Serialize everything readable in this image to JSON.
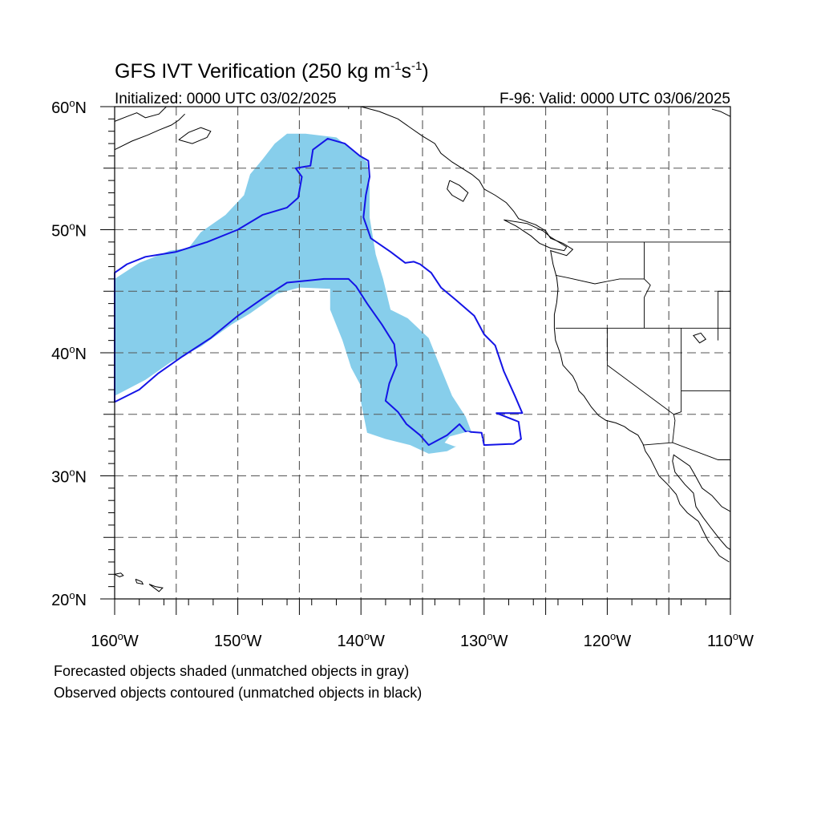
{
  "title": {
    "main": "GFS IVT Verification (250 kg m",
    "sup1": "-1",
    "mid": "s",
    "sup2": "-1",
    "end": ")"
  },
  "initialized": "Initialized: 0000 UTC 03/02/2025",
  "valid": "F-96: Valid: 0000 UTC 03/06/2025",
  "lat_labels": [
    {
      "value": 60,
      "text": "60",
      "unit": "N"
    },
    {
      "value": 50,
      "text": "50",
      "unit": "N"
    },
    {
      "value": 40,
      "text": "40",
      "unit": "N"
    },
    {
      "value": 30,
      "text": "30",
      "unit": "N"
    },
    {
      "value": 20,
      "text": "20",
      "unit": "N"
    }
  ],
  "lon_labels": [
    {
      "value": -160,
      "text": "160",
      "unit": "W"
    },
    {
      "value": -150,
      "text": "150",
      "unit": "W"
    },
    {
      "value": -140,
      "text": "140",
      "unit": "W"
    },
    {
      "value": -130,
      "text": "130",
      "unit": "W"
    },
    {
      "value": -120,
      "text": "120",
      "unit": "W"
    },
    {
      "value": -110,
      "text": "110",
      "unit": "W"
    }
  ],
  "degree_symbol": "o",
  "footnote_1": "Forecasted objects shaded (unmatched objects in gray)",
  "footnote_2": "Observed objects contoured (unmatched objects in black)",
  "map_extent": {
    "lon_min": -160,
    "lon_max": -110,
    "lat_min": 20,
    "lat_max": 60
  },
  "grid_spacing_deg": 5,
  "colors": {
    "forecast_fill": "#87ceeb",
    "observed_contour": "#1414e6",
    "coastline": "#000000",
    "grid": "#555555"
  },
  "forecast_object": [
    [
      -160,
      46
    ],
    [
      -158,
      47.3
    ],
    [
      -155.5,
      48.3
    ],
    [
      -154,
      48.5
    ],
    [
      -153,
      49.8
    ],
    [
      -151,
      51.2
    ],
    [
      -149.5,
      52.8
    ],
    [
      -149,
      54.5
    ],
    [
      -148,
      55.7
    ],
    [
      -147,
      57
    ],
    [
      -146,
      57.8
    ],
    [
      -144.5,
      57.8
    ],
    [
      -142,
      57.5
    ],
    [
      -140.5,
      56.3
    ],
    [
      -139.5,
      55.5
    ],
    [
      -139.3,
      53.5
    ],
    [
      -139.3,
      51
    ],
    [
      -138.8,
      48
    ],
    [
      -138.2,
      46
    ],
    [
      -137.6,
      43.5
    ],
    [
      -136.2,
      42.8
    ],
    [
      -134.5,
      41.2
    ],
    [
      -133.7,
      39.2
    ],
    [
      -132.6,
      36.5
    ],
    [
      -131.5,
      34.8
    ],
    [
      -131,
      33.5
    ],
    [
      -131.7,
      32.7
    ],
    [
      -133,
      32
    ],
    [
      -134.5,
      31.8
    ],
    [
      -136,
      32.5
    ],
    [
      -138,
      33
    ],
    [
      -139.5,
      33.5
    ],
    [
      -140,
      36
    ],
    [
      -140,
      37.3
    ],
    [
      -140.8,
      38.8
    ],
    [
      -141.5,
      41
    ],
    [
      -142.5,
      43.5
    ],
    [
      -142.5,
      45.2
    ],
    [
      -145,
      45.3
    ],
    [
      -146.8,
      44.8
    ],
    [
      -148,
      43.9
    ],
    [
      -149,
      43.2
    ],
    [
      -150.5,
      42.3
    ],
    [
      -153,
      40.5
    ],
    [
      -155.5,
      39.2
    ],
    [
      -157.5,
      37.8
    ],
    [
      -160,
      36.5
    ]
  ],
  "observed_object": [
    [
      -160,
      46.5
    ],
    [
      -159,
      47.2
    ],
    [
      -157.5,
      47.8
    ],
    [
      -155,
      48.2
    ],
    [
      -152.5,
      49
    ],
    [
      -150,
      50
    ],
    [
      -148,
      51.2
    ],
    [
      -146,
      51.8
    ],
    [
      -145.1,
      52.6
    ],
    [
      -144.8,
      54.3
    ],
    [
      -145.3,
      55
    ],
    [
      -144.1,
      55.2
    ],
    [
      -143.9,
      56.5
    ],
    [
      -142.7,
      57.4
    ],
    [
      -141.3,
      57
    ],
    [
      -140.1,
      56
    ],
    [
      -139.4,
      55.6
    ],
    [
      -139.3,
      54.3
    ],
    [
      -139.6,
      52.8
    ],
    [
      -139.8,
      51
    ],
    [
      -139.2,
      49.3
    ],
    [
      -137.6,
      48.2
    ],
    [
      -136.4,
      47.3
    ],
    [
      -135.7,
      47.4
    ],
    [
      -135.2,
      47.2
    ],
    [
      -134.3,
      46.5
    ],
    [
      -133.5,
      45.3
    ],
    [
      -132.3,
      44.3
    ],
    [
      -130.8,
      43
    ],
    [
      -130,
      41.5
    ],
    [
      -129.1,
      40.6
    ],
    [
      -128.4,
      38.5
    ],
    [
      -127.5,
      36.5
    ],
    [
      -126.9,
      35.1
    ],
    [
      -129,
      35.1
    ],
    [
      -127.2,
      34.4
    ],
    [
      -127,
      33
    ],
    [
      -127.6,
      32.6
    ],
    [
      -130,
      32.5
    ],
    [
      -130.2,
      33.5
    ],
    [
      -131.5,
      33.6
    ],
    [
      -132,
      34.2
    ],
    [
      -133,
      33.3
    ],
    [
      -134.5,
      32.5
    ],
    [
      -135.2,
      33.3
    ],
    [
      -136.3,
      34.2
    ],
    [
      -137,
      35.2
    ],
    [
      -138,
      36.1
    ],
    [
      -137.7,
      37.5
    ],
    [
      -137.1,
      39
    ],
    [
      -137.3,
      40.7
    ],
    [
      -138.3,
      42.3
    ],
    [
      -139.5,
      44
    ],
    [
      -140.4,
      45.4
    ],
    [
      -141,
      46
    ],
    [
      -143,
      46
    ],
    [
      -146,
      45.7
    ],
    [
      -148,
      44.4
    ],
    [
      -150,
      43
    ],
    [
      -152.2,
      41.2
    ],
    [
      -154.5,
      39.7
    ],
    [
      -156.5,
      38.3
    ],
    [
      -158,
      37
    ],
    [
      -160,
      36
    ]
  ],
  "observed_inner_gap": [
    [
      -132.8,
      33.2
    ],
    [
      -131.3,
      33.6
    ],
    [
      -130.1,
      33
    ],
    [
      -130.8,
      32.4
    ],
    [
      -132.4,
      32.4
    ],
    [
      -133.2,
      32.7
    ]
  ],
  "coastlines": [
    [
      [
        -160,
        58.8
      ],
      [
        -159,
        59.2
      ],
      [
        -158.2,
        59.5
      ],
      [
        -157.5,
        59.1
      ],
      [
        -156.4,
        59.4
      ],
      [
        -155.8,
        60
      ]
    ],
    [
      [
        -160,
        56.5
      ],
      [
        -158.6,
        57.2
      ],
      [
        -157.3,
        57.7
      ],
      [
        -156.4,
        58.1
      ],
      [
        -155.4,
        58.5
      ],
      [
        -154.8,
        58.9
      ],
      [
        -154.3,
        59.4
      ]
    ],
    [
      [
        -154.8,
        57.3
      ],
      [
        -153.7,
        57
      ],
      [
        -152.5,
        57.5
      ],
      [
        -152.2,
        58
      ],
      [
        -153,
        58.3
      ],
      [
        -154,
        57.9
      ],
      [
        -154.8,
        57.3
      ]
    ],
    [
      [
        -140,
        60
      ],
      [
        -138.5,
        59.6
      ],
      [
        -137,
        59
      ],
      [
        -136,
        58.3
      ],
      [
        -135,
        57.6
      ],
      [
        -134,
        57
      ],
      [
        -133.5,
        56.2
      ],
      [
        -132.6,
        55.5
      ],
      [
        -131.8,
        55
      ],
      [
        -131,
        54.5
      ],
      [
        -130.4,
        54
      ],
      [
        -130,
        53.3
      ],
      [
        -129.1,
        52.8
      ],
      [
        -128.2,
        52.2
      ],
      [
        -127.6,
        51.5
      ],
      [
        -127.2,
        50.9
      ],
      [
        -125.8,
        50.4
      ],
      [
        -125,
        49.9
      ],
      [
        -124.6,
        49.3
      ],
      [
        -123.6,
        48.9
      ],
      [
        -122.8,
        48.4
      ],
      [
        -123.3,
        47.9
      ],
      [
        -124.6,
        48.3
      ],
      [
        -124.4,
        47.2
      ],
      [
        -124.1,
        46.1
      ],
      [
        -124,
        45.2
      ],
      [
        -124.1,
        44.1
      ],
      [
        -124.3,
        43.1
      ],
      [
        -124.3,
        42
      ],
      [
        -124.2,
        41
      ],
      [
        -123.8,
        39.9
      ],
      [
        -123.6,
        39
      ],
      [
        -122.8,
        38.1
      ],
      [
        -122.5,
        37.5
      ],
      [
        -122.3,
        36.9
      ],
      [
        -121.9,
        36.5
      ],
      [
        -121.3,
        35.6
      ],
      [
        -120.7,
        34.9
      ],
      [
        -120.1,
        34.5
      ],
      [
        -119.3,
        34.3
      ],
      [
        -118.6,
        34
      ],
      [
        -118.2,
        33.7
      ],
      [
        -117.5,
        33.3
      ],
      [
        -117.1,
        32.6
      ],
      [
        -116.9,
        32
      ],
      [
        -116.5,
        31.4
      ],
      [
        -116.1,
        30.6
      ],
      [
        -115.8,
        30
      ],
      [
        -115.1,
        29.3
      ],
      [
        -114.4,
        28.5
      ],
      [
        -114.1,
        27.7
      ],
      [
        -113.5,
        27
      ],
      [
        -112.6,
        26.3
      ],
      [
        -112.1,
        25.3
      ],
      [
        -111.8,
        24.7
      ],
      [
        -111.4,
        24.2
      ],
      [
        -110.9,
        23.5
      ],
      [
        -110.1,
        23
      ]
    ],
    [
      [
        -110,
        27.1
      ],
      [
        -110.7,
        27.5
      ],
      [
        -111.5,
        28.4
      ],
      [
        -112.3,
        29
      ],
      [
        -112.9,
        30.1
      ],
      [
        -113.3,
        30.8
      ],
      [
        -114.6,
        31.7
      ],
      [
        -114.7,
        31.2
      ],
      [
        -114.5,
        30.3
      ],
      [
        -113.7,
        29.3
      ],
      [
        -113,
        28.6
      ],
      [
        -112.8,
        27.5
      ],
      [
        -112.2,
        26.6
      ],
      [
        -111.6,
        25.8
      ],
      [
        -110.9,
        24.9
      ],
      [
        -110.3,
        24.2
      ],
      [
        -110,
        24
      ]
    ],
    [
      [
        -128.4,
        50.8
      ],
      [
        -127.4,
        50.3
      ],
      [
        -126.2,
        49.5
      ],
      [
        -125.5,
        48.9
      ],
      [
        -124.6,
        48.5
      ],
      [
        -123.5,
        48.3
      ],
      [
        -123.3,
        48.6
      ],
      [
        -124.6,
        49.4
      ],
      [
        -125.2,
        49.9
      ],
      [
        -126.5,
        50.5
      ],
      [
        -128.4,
        50.8
      ]
    ],
    [
      [
        -132.8,
        54
      ],
      [
        -132,
        53.6
      ],
      [
        -131.3,
        53
      ],
      [
        -131.7,
        52.3
      ],
      [
        -132.6,
        52.8
      ],
      [
        -133,
        53.3
      ],
      [
        -132.8,
        54
      ]
    ],
    [
      [
        -110,
        59.2
      ],
      [
        -110.8,
        59.6
      ],
      [
        -111.5,
        59.8
      ]
    ],
    [
      [
        -160,
        22
      ],
      [
        -159.5,
        22.1
      ],
      [
        -159.3,
        21.9
      ],
      [
        -159.6,
        21.8
      ],
      [
        -160,
        22
      ]
    ],
    [
      [
        -158.3,
        21.6
      ],
      [
        -157.8,
        21.4
      ],
      [
        -157.7,
        21.2
      ],
      [
        -158.2,
        21.3
      ],
      [
        -158.3,
        21.6
      ]
    ],
    [
      [
        -157.2,
        21.2
      ],
      [
        -156.7,
        21
      ],
      [
        -156.1,
        20.9
      ],
      [
        -156.4,
        20.6
      ],
      [
        -157.2,
        21.2
      ]
    ]
  ],
  "borders": [
    [
      [
        -123.2,
        49
      ],
      [
        -110,
        49
      ]
    ],
    [
      [
        -141,
        60
      ],
      [
        -141,
        59.8
      ]
    ],
    [
      [
        -124.2,
        46.3
      ],
      [
        -123.2,
        46.1
      ],
      [
        -121,
        45.6
      ],
      [
        -119,
        46
      ],
      [
        -117,
        46
      ]
    ],
    [
      [
        -117,
        49
      ],
      [
        -117,
        46
      ],
      [
        -116.5,
        45.5
      ],
      [
        -117,
        44.5
      ],
      [
        -117,
        42
      ]
    ],
    [
      [
        -124.2,
        42
      ],
      [
        -110,
        42
      ]
    ],
    [
      [
        -120,
        42
      ],
      [
        -120,
        39
      ],
      [
        -114.6,
        35
      ]
    ],
    [
      [
        -114,
        42
      ],
      [
        -114,
        35.2
      ],
      [
        -114.6,
        35
      ],
      [
        -114.5,
        34.5
      ],
      [
        -114.7,
        32.7
      ]
    ],
    [
      [
        -117.1,
        32.5
      ],
      [
        -114.7,
        32.7
      ],
      [
        -111,
        31.3
      ],
      [
        -110,
        31.3
      ]
    ],
    [
      [
        -111,
        45
      ],
      [
        -110,
        45
      ]
    ],
    [
      [
        -111,
        45
      ],
      [
        -111,
        41
      ]
    ],
    [
      [
        -114,
        36.9
      ],
      [
        -110,
        36.9
      ]
    ]
  ],
  "lakes": [
    [
      [
        -113,
        41.4
      ],
      [
        -112.4,
        41.6
      ],
      [
        -112,
        41.1
      ],
      [
        -112.5,
        40.8
      ],
      [
        -113,
        41.4
      ]
    ]
  ]
}
